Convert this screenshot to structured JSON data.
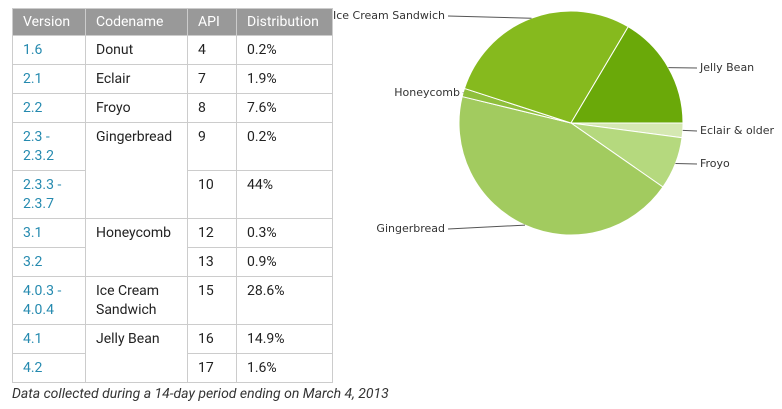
{
  "table": {
    "header": [
      "Version",
      "Codename",
      "API",
      "Distribution"
    ],
    "rows": [
      {
        "version": "1.6",
        "codename": "Donut",
        "api": "4",
        "distribution": "0.2%"
      },
      {
        "version": "2.1",
        "codename": "Eclair",
        "api": "7",
        "distribution": "1.9%"
      },
      {
        "version": "2.2",
        "codename": "Froyo",
        "api": "8",
        "distribution": "7.6%"
      },
      {
        "version": "2.3 - 2.3.2",
        "codename": "Gingerbread",
        "api": "9",
        "distribution": "0.2%"
      },
      {
        "version": "2.3.3 - 2.3.7",
        "api": "10",
        "distribution": "44%"
      },
      {
        "version": "3.1",
        "codename": "Honeycomb",
        "api": "12",
        "distribution": "0.3%"
      },
      {
        "version": "3.2",
        "api": "13",
        "distribution": "0.9%"
      },
      {
        "version": "4.0.3 - 4.0.4",
        "codename": "Ice Cream Sandwich",
        "api": "15",
        "distribution": "28.6%"
      },
      {
        "version": "4.1",
        "codename": "Jelly Bean",
        "api": "16",
        "distribution": "14.9%"
      },
      {
        "version": "4.2",
        "api": "17",
        "distribution": "1.6%"
      }
    ]
  },
  "chart_data": {
    "type": "pie",
    "categories": [
      "Eclair & older",
      "Froyo",
      "Gingerbread",
      "Honeycomb",
      "Ice Cream Sandwich",
      "Jelly Bean"
    ],
    "values": [
      2.1,
      7.6,
      44.2,
      1.2,
      28.6,
      16.5
    ],
    "colors": [
      "#d5e8b2",
      "#b5d97e",
      "#a2cb5f",
      "#8fbf3c",
      "#86ba1e",
      "#6aa909"
    ]
  },
  "footnote": "Data collected during a 14-day period ending on March 4, 2013"
}
